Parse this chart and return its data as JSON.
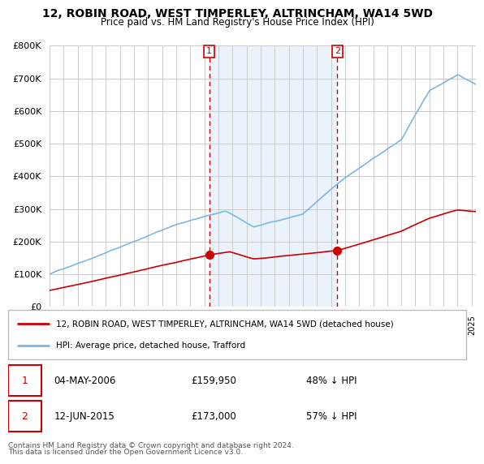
{
  "title": "12, ROBIN ROAD, WEST TIMPERLEY, ALTRINCHAM, WA14 5WD",
  "subtitle": "Price paid vs. HM Land Registry's House Price Index (HPI)",
  "ylim": [
    0,
    800000
  ],
  "yticks": [
    0,
    100000,
    200000,
    300000,
    400000,
    500000,
    600000,
    700000,
    800000
  ],
  "hpi_color": "#7ab8e8",
  "hpi_fill_color": "#d6e9f8",
  "price_color": "#cc0000",
  "marker_color": "#cc0000",
  "vline_color": "#cc0000",
  "purchase1_x": 2006.35,
  "purchase2_x": 2015.45,
  "legend_property": "12, ROBIN ROAD, WEST TIMPERLEY, ALTRINCHAM, WA14 5WD (detached house)",
  "legend_hpi": "HPI: Average price, detached house, Trafford",
  "footer1": "Contains HM Land Registry data © Crown copyright and database right 2024.",
  "footer2": "This data is licensed under the Open Government Licence v3.0.",
  "ann1_date": "04-MAY-2006",
  "ann1_price": "£159,950",
  "ann1_pct": "48% ↓ HPI",
  "ann2_date": "12-JUN-2015",
  "ann2_price": "£173,000",
  "ann2_pct": "57% ↓ HPI",
  "bg_color": "#ffffff",
  "grid_color": "#cccccc",
  "xmin": 1995,
  "xmax": 2025.3
}
